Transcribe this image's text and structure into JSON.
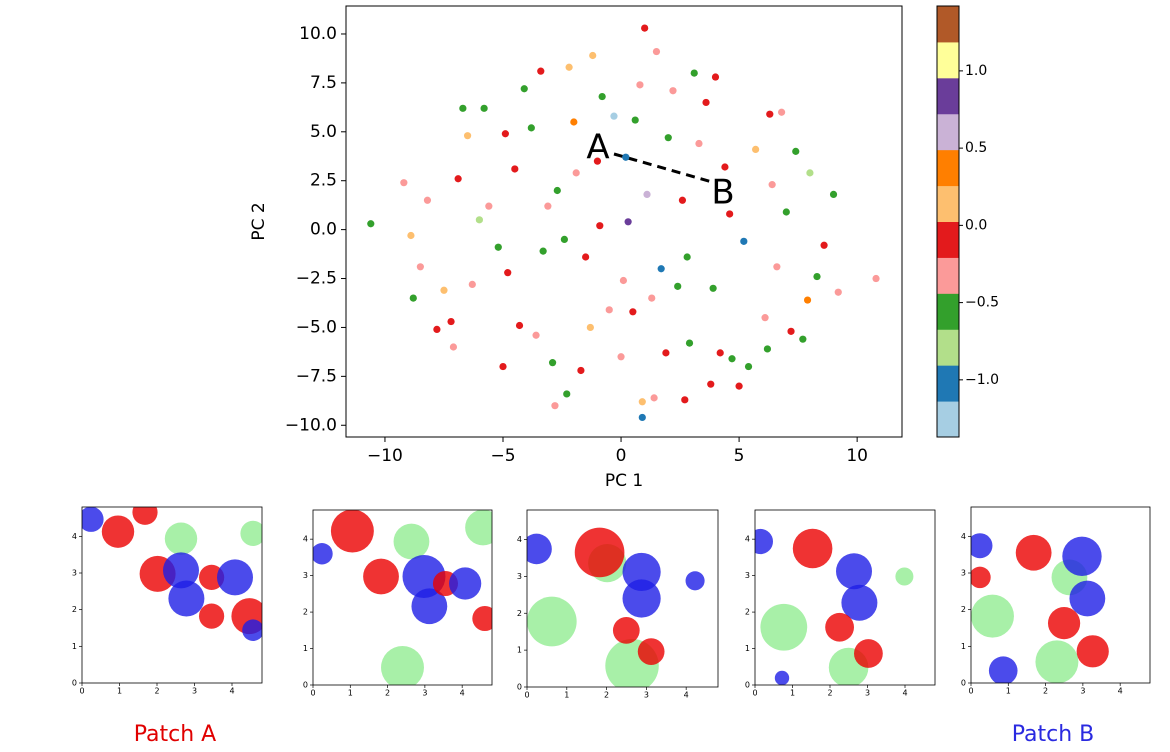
{
  "chart_data": [
    {
      "type": "scatter",
      "x_label": "PC 1",
      "y_label": "PC 2",
      "xlim": [
        -11.65,
        11.9
      ],
      "ylim": [
        -10.6,
        11.43
      ],
      "xticks": [
        {
          "value": -10,
          "label": "−10"
        },
        {
          "value": -5,
          "label": "−5"
        },
        0,
        5,
        10
      ],
      "yticks": [
        {
          "value": -10,
          "label": "−10.0"
        },
        {
          "value": -7.5,
          "label": "−7.5"
        },
        {
          "value": -5,
          "label": "−5.0"
        },
        {
          "value": -2.5,
          "label": "−2.5"
        },
        {
          "value": 0,
          "label": "0.0"
        },
        {
          "value": 2.5,
          "label": "2.5"
        },
        {
          "value": 5,
          "label": "5.0"
        },
        {
          "value": 7.5,
          "label": "7.5"
        },
        {
          "value": 10,
          "label": "10.0"
        }
      ],
      "x": [
        -8.2,
        -6.5,
        -4.1,
        -1.2,
        1.5,
        4.0,
        6.3,
        8.0,
        8.6,
        7.9,
        6.2,
        3.8,
        0.9,
        -2.3,
        -5.0,
        -7.2,
        -8.5,
        -6.0,
        -4.5,
        -2.0,
        -10.6,
        10.8,
        1.0,
        0.9,
        -3.1,
        -1.5,
        0.2,
        2.4,
        4.6,
        6.1,
        -7.5,
        -5.8,
        -3.6,
        -0.8,
        1.9,
        3.3,
        5.2,
        7.0,
        -6.9,
        -4.8,
        -2.7,
        -0.5,
        1.1,
        2.9,
        4.4,
        6.6,
        8.3,
        -8.9,
        -7.1,
        -5.2,
        -3.4,
        -1.7,
        0.6,
        2.2,
        3.9,
        5.7,
        7.4,
        -6.3,
        -4.3,
        -2.4,
        0.0,
        1.7,
        3.6,
        5.4,
        7.2,
        -5.6,
        -3.8,
        -1.9,
        0.3,
        2.6,
        4.7,
        6.4,
        -4.9,
        -2.9,
        -0.9,
        1.3,
        3.1,
        5.0,
        -3.3,
        -1.3,
        0.8,
        2.8,
        4.2,
        -2.2,
        0.1,
        2.0,
        -1.0,
        1.4,
        -8.8,
        9.2,
        -9.2,
        9.0,
        -7.8,
        7.7,
        -2.8,
        2.7,
        -6.7,
        6.8,
        -0.3,
        0.5
      ],
      "y": [
        1.5,
        4.8,
        7.2,
        8.9,
        9.1,
        7.8,
        5.9,
        2.9,
        -0.8,
        -3.6,
        -6.1,
        -7.9,
        -8.8,
        -8.4,
        -7.0,
        -4.7,
        -1.9,
        0.5,
        3.1,
        5.5,
        0.3,
        -2.5,
        10.3,
        -9.6,
        1.2,
        -1.4,
        3.7,
        -2.9,
        0.8,
        -4.5,
        -3.1,
        6.2,
        -5.4,
        6.8,
        -6.3,
        4.4,
        -0.6,
        0.9,
        2.6,
        -2.2,
        2.0,
        -4.1,
        1.8,
        -5.8,
        3.2,
        -1.9,
        -2.4,
        -0.3,
        -6.0,
        -0.9,
        8.1,
        -7.2,
        5.6,
        7.1,
        -3.0,
        4.1,
        4.0,
        -2.8,
        -4.9,
        -0.5,
        -6.5,
        -2.0,
        6.5,
        -7.0,
        -5.2,
        1.2,
        5.2,
        2.9,
        0.4,
        1.5,
        -6.6,
        2.3,
        4.9,
        -6.8,
        0.2,
        -3.5,
        8.0,
        -8.0,
        -1.1,
        -5.0,
        7.4,
        -1.4,
        -6.3,
        8.3,
        -2.6,
        4.7,
        3.5,
        -8.6,
        -3.5,
        -3.2,
        2.4,
        1.8,
        -5.1,
        -5.6,
        -9.0,
        -8.7,
        6.2,
        6.0,
        5.8,
        -4.2
      ],
      "c": [
        -0.3,
        0.1,
        -0.6,
        0.2,
        -0.4,
        0.0,
        -0.2,
        -0.7,
        -0.1,
        0.3,
        -0.5,
        -0.2,
        0.1,
        -0.6,
        -0.1,
        0.0,
        -0.4,
        -0.8,
        -0.2,
        0.4,
        -0.6,
        -0.3,
        -0.1,
        -1.0,
        -0.4,
        0.0,
        -1.0,
        -0.6,
        -0.2,
        -0.4,
        0.1,
        -0.5,
        -0.3,
        -0.6,
        0.0,
        -0.4,
        -1.1,
        -0.6,
        -0.2,
        0.0,
        -0.5,
        -0.3,
        0.7,
        -0.6,
        -0.1,
        -0.4,
        -0.6,
        0.1,
        -0.3,
        -0.5,
        -0.2,
        0.0,
        -0.6,
        -0.4,
        -0.5,
        0.2,
        -0.6,
        -0.3,
        -0.1,
        -0.5,
        -0.4,
        -1.0,
        -0.2,
        -0.6,
        0.0,
        -0.4,
        -0.5,
        -0.3,
        0.9,
        -0.1,
        -0.6,
        -0.4,
        0.0,
        -0.5,
        -0.2,
        -0.3,
        -0.6,
        -0.1,
        -0.5,
        0.1,
        -0.4,
        -0.6,
        -0.2,
        0.2,
        -0.3,
        -0.5,
        -0.1,
        -0.4,
        -0.6,
        -0.3,
        -0.4,
        -0.6,
        -0.1,
        -0.5,
        -0.3,
        0.0,
        -0.6,
        -0.4,
        -1.2,
        -0.2
      ],
      "colorbar": {
        "lim": [
          -1.37,
          1.42
        ],
        "ticks": [
          {
            "value": -1,
            "label": "−1.0"
          },
          {
            "value": -0.5,
            "label": "−0.5"
          },
          {
            "value": 0,
            "label": "0.0"
          },
          0.5,
          {
            "value": 1,
            "label": "1.0"
          }
        ],
        "colors": [
          "#a6cee3",
          "#1f78b4",
          "#b2df8a",
          "#33a02c",
          "#fb9a99",
          "#e31a1c",
          "#fdbf6f",
          "#ff7f00",
          "#cab2d6",
          "#6a3d9a",
          "#ffff99",
          "#b15928"
        ]
      }
    },
    {
      "type": "image",
      "xlim": [
        0,
        4.8
      ],
      "ylim": [
        0,
        4.8
      ],
      "xticks": [
        0,
        1,
        2,
        3,
        4
      ],
      "yticks": [
        0,
        1,
        2,
        3,
        4
      ]
    },
    {
      "type": "image",
      "xlim": [
        0,
        4.8
      ],
      "ylim": [
        0,
        4.8
      ],
      "xticks": [
        0,
        1,
        2,
        3,
        4
      ],
      "yticks": [
        0,
        1,
        2,
        3,
        4
      ]
    },
    {
      "type": "image",
      "xlim": [
        0,
        4.8
      ],
      "ylim": [
        0,
        4.8
      ],
      "xticks": [
        0,
        1,
        2,
        3,
        4
      ],
      "yticks": [
        0,
        1,
        2,
        3,
        4
      ]
    },
    {
      "type": "image",
      "xlim": [
        0,
        4.8
      ],
      "ylim": [
        0,
        4.8
      ],
      "xticks": [
        0,
        1,
        2,
        3,
        4
      ],
      "yticks": [
        0,
        1,
        2,
        3,
        4
      ]
    },
    {
      "type": "image",
      "xlim": [
        0,
        4.8
      ],
      "ylim": [
        0,
        4.8
      ],
      "xticks": [
        0,
        1,
        2,
        3,
        4
      ],
      "yticks": [
        0,
        1,
        2,
        3,
        4
      ]
    }
  ],
  "annotations": {
    "point_a": "A",
    "point_b": "B",
    "patch_a": "Patch A",
    "patch_b": "Patch B"
  }
}
